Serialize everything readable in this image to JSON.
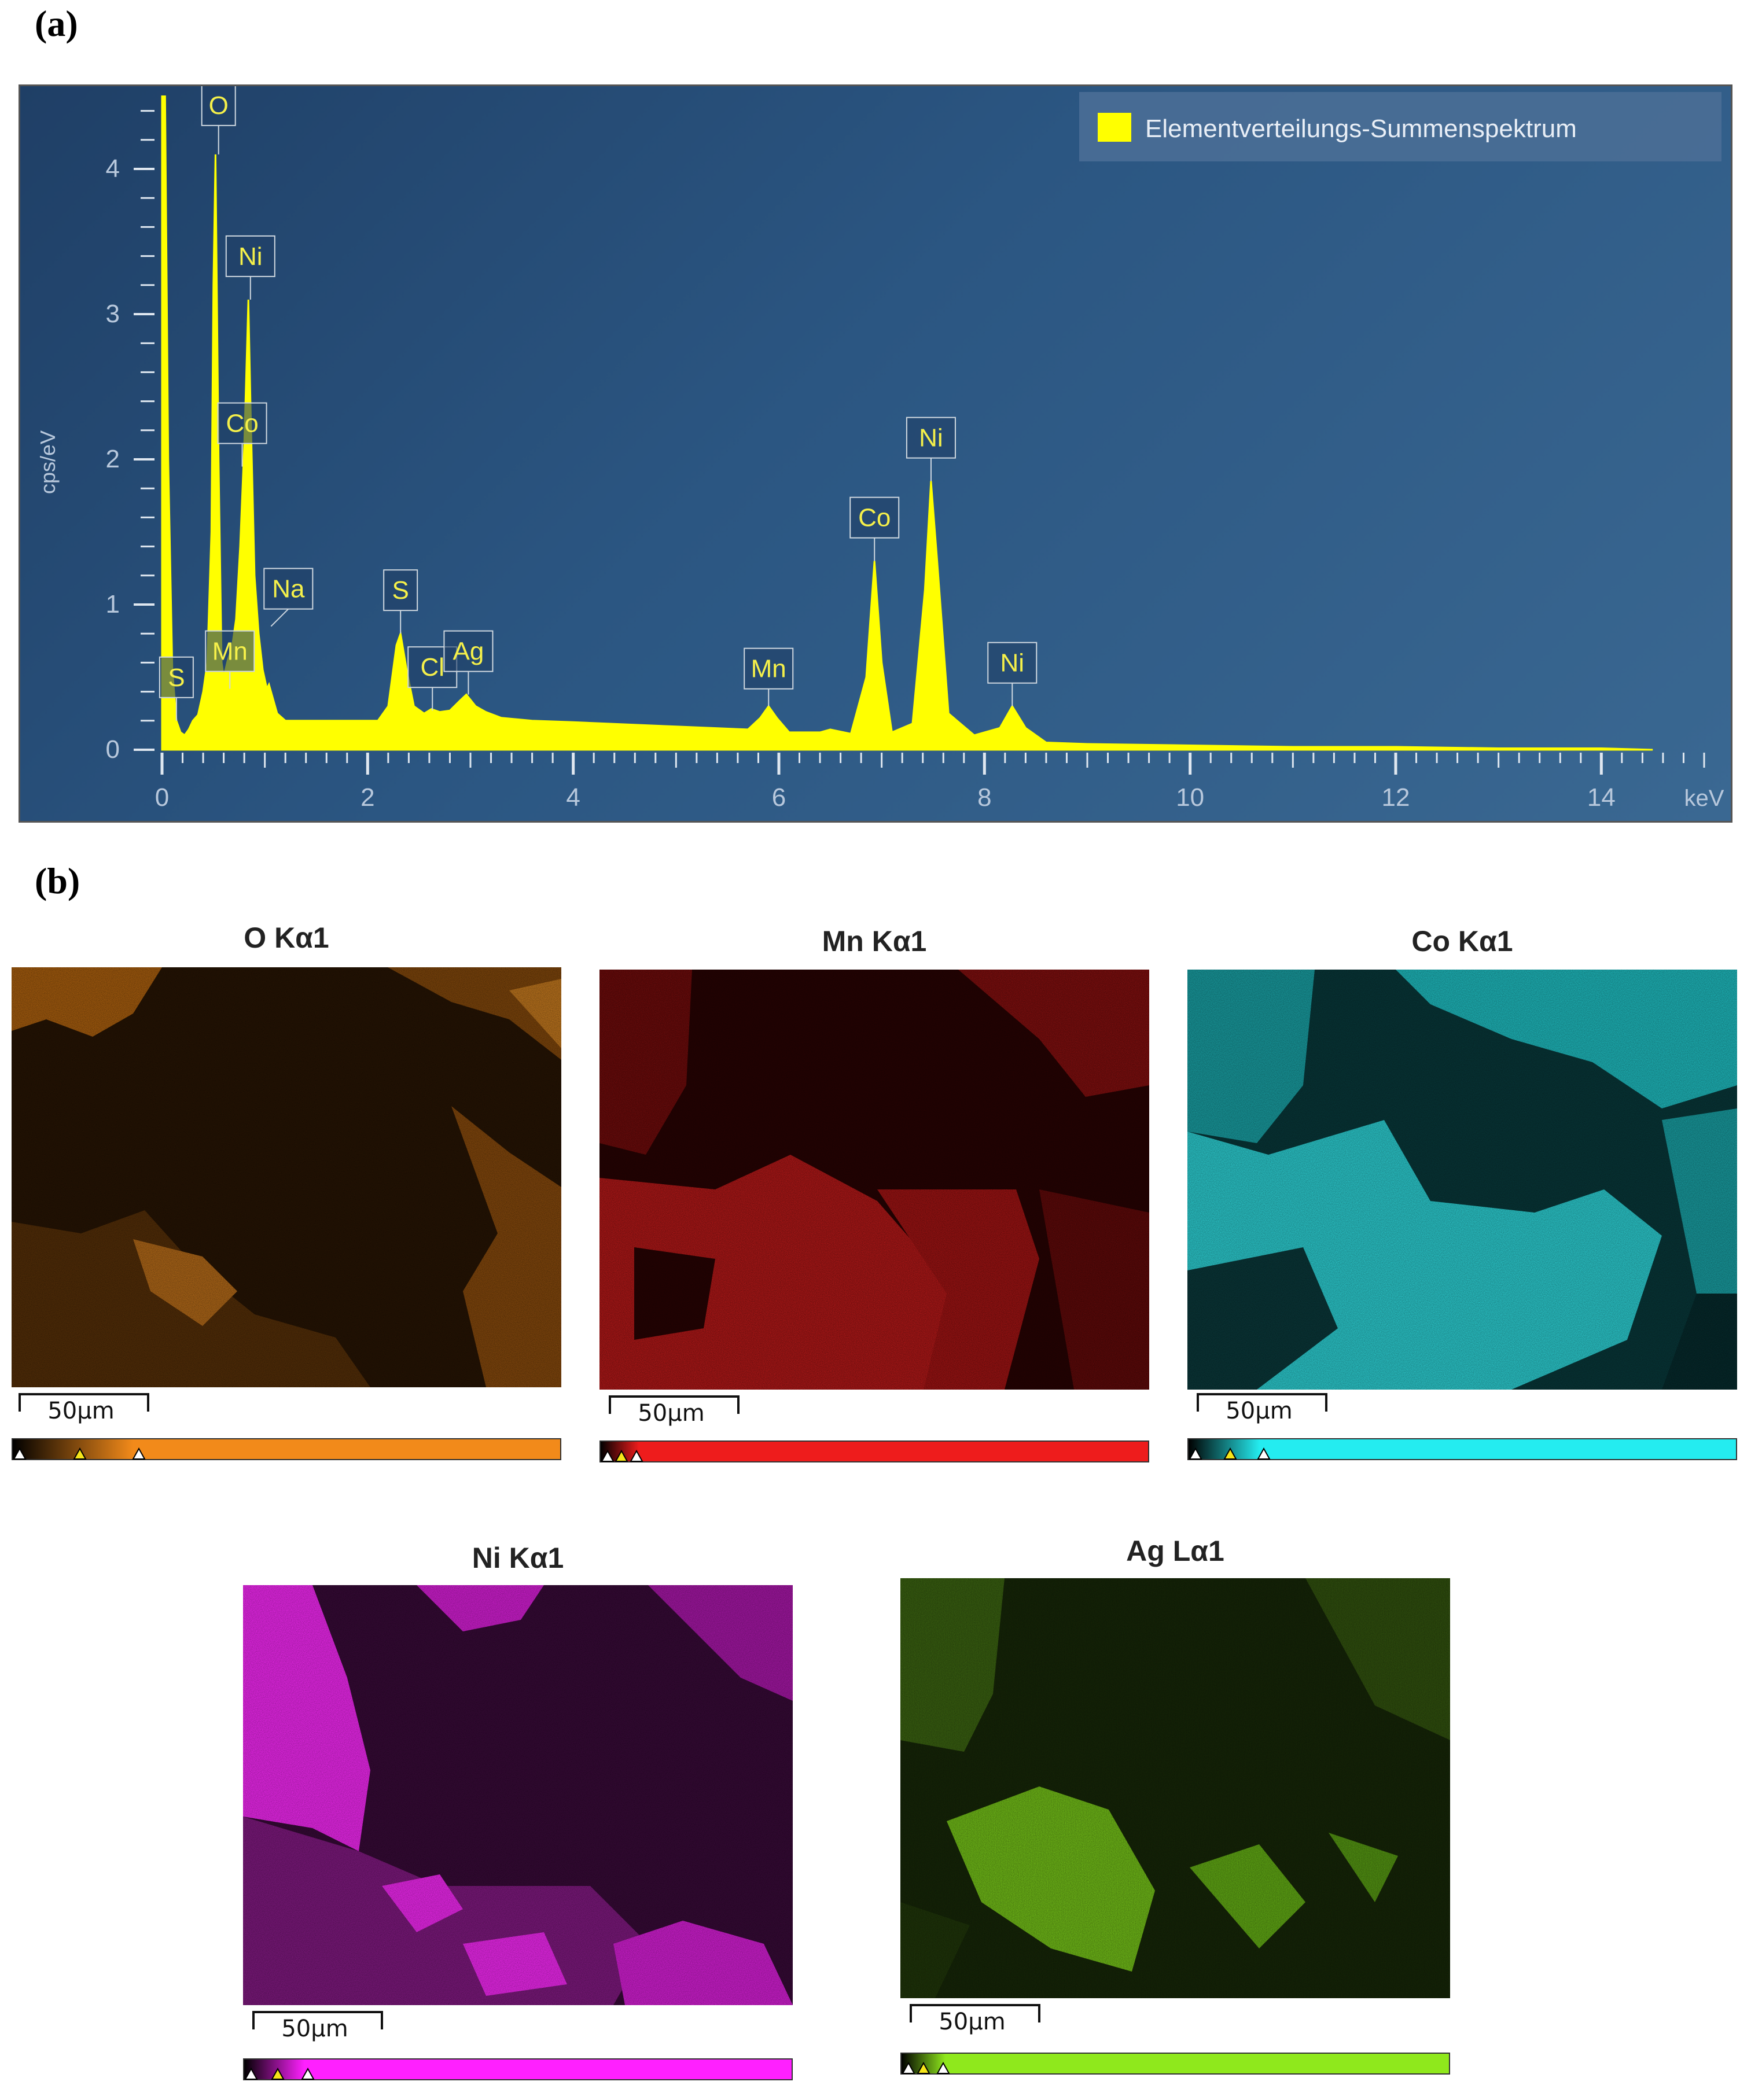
{
  "panel_a_label": "(a)",
  "panel_b_label": "(b)",
  "chart_data": {
    "type": "area",
    "xlabel": "keV",
    "ylabel": "cps/eV",
    "xlim": [
      0,
      15
    ],
    "ylim": [
      0,
      4.4
    ],
    "xticks": [
      0,
      2,
      4,
      6,
      8,
      10,
      12,
      14
    ],
    "yticks": [
      0,
      1,
      2,
      3,
      4
    ],
    "grid": false,
    "legend_position": "top-right",
    "series": [
      {
        "name": "Elementverteilungs-Summenspektrum",
        "color": "#ffff00",
        "x": [
          0.0,
          0.03,
          0.06,
          0.1,
          0.14,
          0.18,
          0.22,
          0.26,
          0.3,
          0.35,
          0.4,
          0.44,
          0.48,
          0.5,
          0.52,
          0.55,
          0.58,
          0.6,
          0.64,
          0.68,
          0.72,
          0.76,
          0.8,
          0.84,
          0.86,
          0.9,
          0.94,
          0.98,
          1.02,
          1.04,
          1.08,
          1.12,
          1.2,
          1.4,
          1.8,
          2.1,
          2.2,
          2.28,
          2.32,
          2.38,
          2.45,
          2.55,
          2.62,
          2.7,
          2.8,
          2.9,
          2.96,
          3.05,
          3.15,
          3.3,
          3.6,
          4.0,
          5.0,
          5.7,
          5.82,
          5.9,
          5.98,
          6.1,
          6.4,
          6.5,
          6.7,
          6.85,
          6.93,
          7.0,
          7.1,
          7.3,
          7.42,
          7.48,
          7.54,
          7.65,
          7.9,
          8.15,
          8.27,
          8.4,
          8.6,
          9.0,
          10.0,
          11.0,
          12.0,
          13.0,
          14.0,
          14.5
        ],
        "y": [
          4.5,
          4.5,
          2.0,
          0.55,
          0.2,
          0.12,
          0.1,
          0.14,
          0.2,
          0.24,
          0.4,
          0.6,
          1.5,
          3.2,
          4.1,
          2.0,
          0.6,
          0.5,
          0.62,
          0.7,
          0.9,
          1.4,
          2.1,
          3.1,
          2.4,
          1.2,
          0.8,
          0.55,
          0.42,
          0.45,
          0.35,
          0.25,
          0.2,
          0.2,
          0.2,
          0.2,
          0.3,
          0.72,
          0.8,
          0.55,
          0.3,
          0.25,
          0.28,
          0.26,
          0.27,
          0.34,
          0.38,
          0.3,
          0.26,
          0.22,
          0.2,
          0.19,
          0.16,
          0.14,
          0.22,
          0.3,
          0.22,
          0.12,
          0.12,
          0.14,
          0.11,
          0.5,
          1.3,
          0.6,
          0.12,
          0.18,
          1.1,
          1.85,
          1.3,
          0.25,
          0.1,
          0.15,
          0.3,
          0.15,
          0.05,
          0.04,
          0.03,
          0.02,
          0.02,
          0.01,
          0.01,
          0.0
        ]
      }
    ],
    "peak_labels": [
      {
        "label": "O",
        "x": 0.55,
        "y": 4.1
      },
      {
        "label": "Ni",
        "x": 0.86,
        "y": 3.1
      },
      {
        "label": "Co",
        "x": 0.78,
        "y": 1.95
      },
      {
        "label": "Na",
        "x": 1.06,
        "y": 0.85
      },
      {
        "label": "Mn",
        "x": 0.66,
        "y": 0.42
      },
      {
        "label": "S",
        "x": 0.14,
        "y": 0.2
      },
      {
        "label": "S",
        "x": 2.32,
        "y": 0.8
      },
      {
        "label": "Cl",
        "x": 2.63,
        "y": 0.27
      },
      {
        "label": "Ag",
        "x": 2.98,
        "y": 0.38
      },
      {
        "label": "Mn",
        "x": 5.9,
        "y": 0.3
      },
      {
        "label": "Co",
        "x": 6.93,
        "y": 1.3
      },
      {
        "label": "Ni",
        "x": 7.48,
        "y": 1.85
      },
      {
        "label": "Ni",
        "x": 8.27,
        "y": 0.3
      }
    ]
  },
  "maps": [
    {
      "title": "O Kα1",
      "scale": "50µm",
      "color": "#f28a1a"
    },
    {
      "title": "Mn Kα1",
      "scale": "50µm",
      "color": "#ee1c1c"
    },
    {
      "title": "Co Kα1",
      "scale": "50µm",
      "color": "#24ecf0"
    },
    {
      "title": "Ni Kα1",
      "scale": "50µm",
      "color": "#ff20ff"
    },
    {
      "title": "Ag Lα1",
      "scale": "50µm",
      "color": "#8fe81c"
    }
  ]
}
